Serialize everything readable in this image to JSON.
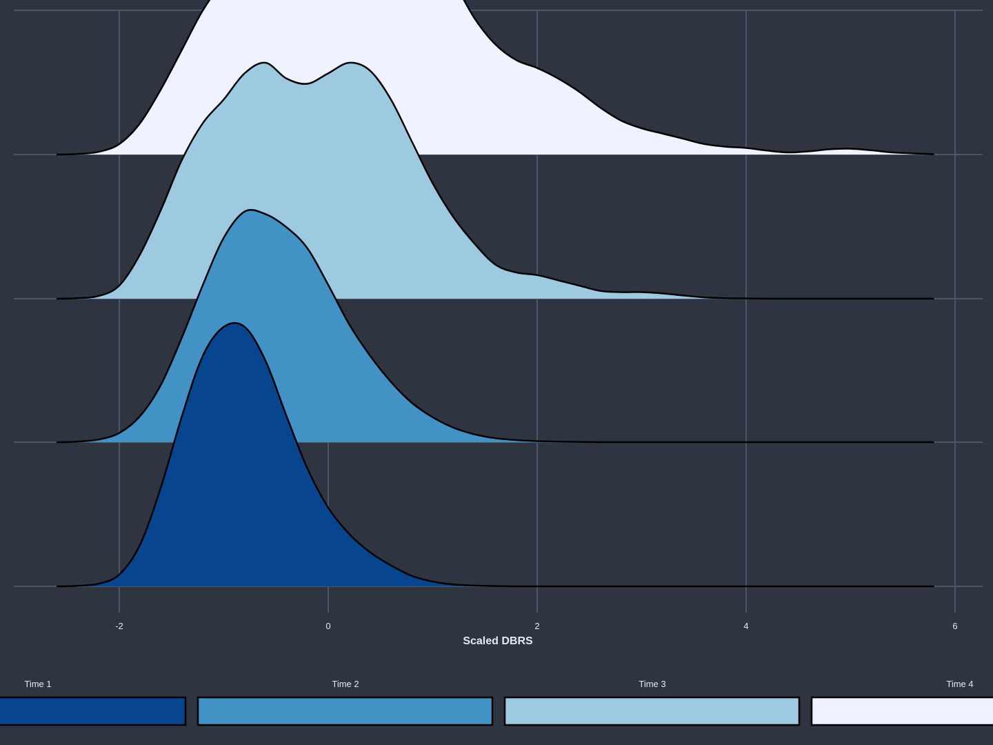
{
  "chart_data": {
    "type": "area",
    "subtype": "ridgeline-density",
    "title": "",
    "xlabel": "Scaled DBRS",
    "ylabel": "",
    "xlim": [
      -3.0,
      6.3
    ],
    "x_ticks": [
      -2,
      0,
      2,
      4,
      6
    ],
    "x_tick_labels": [
      "-2",
      "0",
      "2",
      "4",
      "6"
    ],
    "grid": true,
    "legend_position": "bottom",
    "colors": {
      "background": "#2e3440",
      "grid": "#4c566a",
      "text": "#e5e9f0",
      "outline": "#000000"
    },
    "x": [
      -2.6,
      -2.4,
      -2.2,
      -2.0,
      -1.8,
      -1.6,
      -1.4,
      -1.2,
      -1.0,
      -0.8,
      -0.6,
      -0.4,
      -0.2,
      0.0,
      0.2,
      0.4,
      0.6,
      0.8,
      1.0,
      1.2,
      1.4,
      1.6,
      1.8,
      2.0,
      2.2,
      2.4,
      2.6,
      2.8,
      3.0,
      3.2,
      3.4,
      3.6,
      3.8,
      4.0,
      4.2,
      4.4,
      4.6,
      4.8,
      5.0,
      5.2,
      5.4,
      5.6,
      5.8
    ],
    "series": [
      {
        "name": "Time 1",
        "color": "#08458f",
        "density": [
          0.0,
          0.002,
          0.01,
          0.045,
          0.16,
          0.38,
          0.65,
          0.88,
          0.99,
          0.99,
          0.86,
          0.65,
          0.45,
          0.3,
          0.2,
          0.13,
          0.08,
          0.04,
          0.018,
          0.007,
          0.003,
          0.001,
          0.0,
          0.0,
          0.0,
          0.0,
          0.0,
          0.0,
          0.0,
          0.0,
          0.0,
          0.0,
          0.0,
          0.0,
          0.0,
          0.0,
          0.0,
          0.0,
          0.0,
          0.0,
          0.0,
          0.0,
          0.0
        ]
      },
      {
        "name": "Time 2",
        "color": "#4292c6",
        "density": [
          0.0,
          0.002,
          0.01,
          0.035,
          0.1,
          0.22,
          0.4,
          0.6,
          0.78,
          0.88,
          0.87,
          0.82,
          0.74,
          0.6,
          0.45,
          0.33,
          0.23,
          0.15,
          0.095,
          0.055,
          0.03,
          0.015,
          0.008,
          0.004,
          0.002,
          0.001,
          0.0,
          0.0,
          0.0,
          0.0,
          0.0,
          0.0,
          0.0,
          0.0,
          0.0,
          0.0,
          0.0,
          0.0,
          0.0,
          0.0,
          0.0,
          0.0,
          0.0
        ]
      },
      {
        "name": "Time 3",
        "color": "#9ecae1",
        "density": [
          0.0,
          0.002,
          0.01,
          0.05,
          0.17,
          0.34,
          0.53,
          0.67,
          0.76,
          0.86,
          0.9,
          0.84,
          0.82,
          0.86,
          0.9,
          0.87,
          0.76,
          0.6,
          0.44,
          0.31,
          0.21,
          0.13,
          0.1,
          0.09,
          0.07,
          0.05,
          0.03,
          0.025,
          0.025,
          0.02,
          0.012,
          0.005,
          0.002,
          0.001,
          0.0,
          0.0,
          0.0,
          0.0,
          0.0,
          0.0,
          0.0,
          0.0,
          0.0
        ]
      },
      {
        "name": "Time 4",
        "color": "#eff3ff",
        "density": [
          0.0,
          0.002,
          0.01,
          0.04,
          0.12,
          0.25,
          0.4,
          0.55,
          0.66,
          0.72,
          0.76,
          0.81,
          0.86,
          0.92,
          0.94,
          0.92,
          0.88,
          0.85,
          0.78,
          0.66,
          0.52,
          0.42,
          0.36,
          0.33,
          0.29,
          0.24,
          0.18,
          0.13,
          0.1,
          0.08,
          0.06,
          0.04,
          0.03,
          0.025,
          0.015,
          0.008,
          0.012,
          0.02,
          0.022,
          0.016,
          0.008,
          0.004,
          0.001
        ]
      }
    ]
  }
}
